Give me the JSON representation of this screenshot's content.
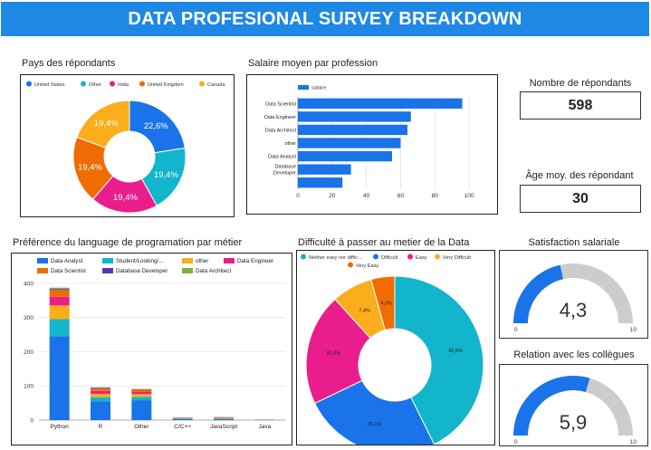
{
  "header": {
    "title": "DATA PROFESIONAL SURVEY BREAKDOWN"
  },
  "colors": {
    "banner": "#1e88e5",
    "blue": "#1a73e8",
    "teal": "#12b5cb",
    "pink": "#e91e8c",
    "orange": "#f06c00",
    "gold": "#fbad1c",
    "purple": "#5e35b1",
    "green": "#7cb342",
    "gray": "#cccccc"
  },
  "kpis": {
    "respondents": {
      "label": "Nombre de répondants",
      "value": "598"
    },
    "avg_age": {
      "label": "Âge moy. des répondant",
      "value": "30"
    }
  },
  "gauges": {
    "salary": {
      "label": "Satisfaction salariale",
      "value": 4.3,
      "display": "4,3",
      "min": "0",
      "max": "10"
    },
    "colleagues": {
      "label": "Relation avec les collègues",
      "value": 5.9,
      "display": "5,9",
      "min": "0",
      "max": "10"
    }
  },
  "chart_data": [
    {
      "id": "country",
      "type": "pie",
      "title": "Pays des répondants",
      "labels": [
        "United States",
        "Other",
        "India",
        "United Kingdom",
        "Canada"
      ],
      "values": [
        22.6,
        19.4,
        19.4,
        19.4,
        19.4
      ],
      "value_labels": [
        "22,6%",
        "19,4%",
        "19,4%",
        "19,4%",
        "19,4%"
      ],
      "colors": [
        "#1a73e8",
        "#12b5cb",
        "#e91e8c",
        "#f06c00",
        "#fbad1c"
      ],
      "donut": true,
      "legend": "top"
    },
    {
      "id": "salary",
      "type": "bar",
      "orientation": "horizontal",
      "title": "Salaire moyen par profession",
      "series": [
        {
          "name": "salaire",
          "color": "#1a73e8"
        }
      ],
      "categories": [
        "Data Scientist",
        "Data Engineer",
        "Data Architect",
        "other",
        "Data Analyst",
        "Database Developer",
        ""
      ],
      "values": [
        96,
        66,
        64,
        60,
        55,
        31,
        26
      ],
      "xticks": [
        "0",
        "20",
        "40",
        "60",
        "80",
        "100"
      ],
      "xlim": [
        0,
        110
      ],
      "legend": "top-left"
    },
    {
      "id": "language",
      "type": "bar",
      "stacked": true,
      "title": "Préférence du language de programation par métier",
      "categories": [
        "Python",
        "R",
        "Other",
        "C/C++",
        "JavaScript",
        "Java"
      ],
      "series": [
        {
          "name": "Data Analyst",
          "color": "#1a73e8",
          "values": [
            245,
            55,
            58,
            3,
            3,
            1
          ]
        },
        {
          "name": "Student/Looking/...",
          "color": "#12b5cb",
          "values": [
            50,
            12,
            10,
            2,
            2,
            0
          ]
        },
        {
          "name": "other",
          "color": "#fbad1c",
          "values": [
            40,
            10,
            8,
            1,
            2,
            1
          ]
        },
        {
          "name": "Data Engineer",
          "color": "#e91e8c",
          "values": [
            25,
            8,
            6,
            1,
            1,
            0
          ]
        },
        {
          "name": "Data Scientist",
          "color": "#f06c00",
          "values": [
            20,
            8,
            7,
            1,
            1,
            0
          ]
        },
        {
          "name": "Database Developer",
          "color": "#5e35b1",
          "values": [
            3,
            2,
            1,
            0,
            0,
            0
          ]
        },
        {
          "name": "Data Architect",
          "color": "#7cb342",
          "values": [
            4,
            1,
            1,
            0,
            0,
            0
          ]
        }
      ],
      "yticks": [
        "0",
        "100",
        "200",
        "300",
        "400"
      ],
      "ylim": [
        0,
        410
      ],
      "legend": "top"
    },
    {
      "id": "difficulty",
      "type": "pie",
      "title": "Difficulté à passer au metier de la Data",
      "labels": [
        "Neither easy nor diffic...",
        "Difficult",
        "Easy",
        "Very Difficult",
        "Very Easy"
      ],
      "values": [
        42.5,
        25.1,
        20.3,
        7.4,
        4.3
      ],
      "value_labels": [
        "42,5%",
        "25,1%",
        "20,3%",
        "7,4%",
        "4,3%"
      ],
      "colors": [
        "#12b5cb",
        "#1a73e8",
        "#e91e8c",
        "#fbad1c",
        "#f06c00"
      ],
      "donut": true,
      "legend": "top"
    }
  ]
}
